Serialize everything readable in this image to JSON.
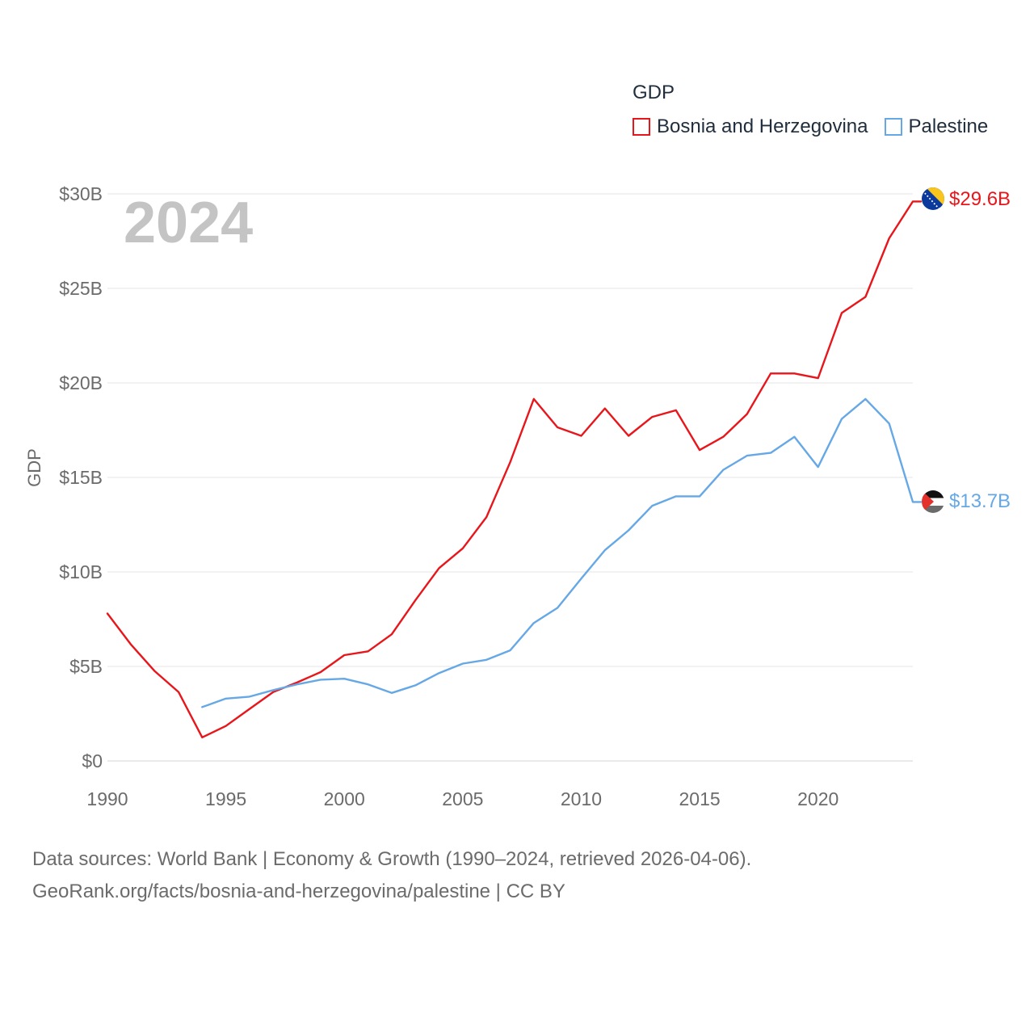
{
  "chart_data": {
    "type": "line",
    "ylabel": "GDP",
    "xlabel": "",
    "year_watermark": "2024",
    "legend_title": "GDP",
    "xlim": [
      1990,
      2024
    ],
    "ylim": [
      0,
      30
    ],
    "x_ticks": [
      1990,
      1995,
      2000,
      2005,
      2010,
      2015,
      2020
    ],
    "x_tick_labels": [
      "1990",
      "1995",
      "2000",
      "2005",
      "2010",
      "2015",
      "2020"
    ],
    "y_ticks": [
      0,
      5,
      10,
      15,
      20,
      25,
      30
    ],
    "y_tick_labels": [
      "$0",
      "$5B",
      "$10B",
      "$15B",
      "$20B",
      "$25B",
      "$30B"
    ],
    "grid": true,
    "series": [
      {
        "name": "Bosnia and Herzegovina",
        "color": "#e8161b",
        "flag": "bosnia-flag-icon",
        "end_label": "$29.6B",
        "x": [
          1990,
          1991,
          1992,
          1993,
          1994,
          1995,
          1996,
          1997,
          1998,
          1999,
          2000,
          2001,
          2002,
          2003,
          2004,
          2005,
          2006,
          2007,
          2008,
          2009,
          2010,
          2011,
          2012,
          2013,
          2014,
          2015,
          2016,
          2017,
          2018,
          2019,
          2020,
          2021,
          2022,
          2023,
          2024
        ],
        "values": [
          7.8,
          6.15,
          4.75,
          3.65,
          1.25,
          1.85,
          2.75,
          3.65,
          4.15,
          4.7,
          5.6,
          5.8,
          6.7,
          8.5,
          10.2,
          11.25,
          12.9,
          15.8,
          19.15,
          17.65,
          17.2,
          18.65,
          17.2,
          18.2,
          18.55,
          16.45,
          17.15,
          18.35,
          20.5,
          20.5,
          20.25,
          23.7,
          24.55,
          27.65,
          29.6
        ]
      },
      {
        "name": "Palestine",
        "color": "#66a8e6",
        "flag": "palestine-flag-icon",
        "end_label": "$13.7B",
        "x": [
          1994,
          1995,
          1996,
          1997,
          1998,
          1999,
          2000,
          2001,
          2002,
          2003,
          2004,
          2005,
          2006,
          2007,
          2008,
          2009,
          2010,
          2011,
          2012,
          2013,
          2014,
          2015,
          2016,
          2017,
          2018,
          2019,
          2020,
          2021,
          2022,
          2023,
          2024
        ],
        "values": [
          2.85,
          3.3,
          3.4,
          3.75,
          4.05,
          4.3,
          4.35,
          4.05,
          3.6,
          4.0,
          4.65,
          5.15,
          5.35,
          5.85,
          7.3,
          8.1,
          9.65,
          11.15,
          12.2,
          13.5,
          14.0,
          14.0,
          15.4,
          16.15,
          16.3,
          17.15,
          15.55,
          18.1,
          19.15,
          17.85,
          13.7
        ]
      }
    ]
  },
  "footer": {
    "line1": "Data sources: World Bank | Economy & Growth (1990–2024, retrieved 2026-04-06).",
    "line2": "GeoRank.org/facts/bosnia-and-herzegovina/palestine | CC BY"
  }
}
